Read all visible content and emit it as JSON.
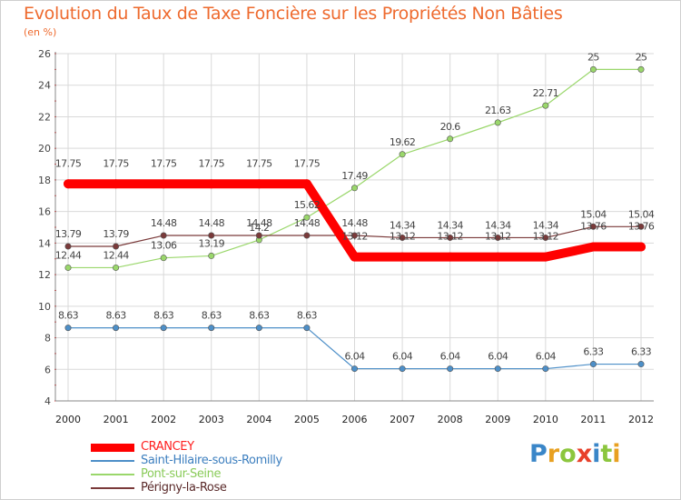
{
  "chart_data": {
    "type": "line",
    "title": "Evolution du Taux de Taxe Foncière sur les Propriétés Non Bâties",
    "ylabel": "(en %)",
    "xlabel": "",
    "categories": [
      "2000",
      "2001",
      "2002",
      "2003",
      "2004",
      "2005",
      "2006",
      "2007",
      "2008",
      "2009",
      "2010",
      "2011",
      "2012"
    ],
    "ylim": [
      4,
      26
    ],
    "yticks": [
      4,
      6,
      8,
      10,
      12,
      14,
      16,
      18,
      20,
      22,
      24,
      26
    ],
    "grid": true,
    "legend_position": "bottom-left",
    "series": [
      {
        "name": "CRANCEY",
        "color": "#ff0000",
        "values": [
          17.75,
          17.75,
          17.75,
          17.75,
          17.75,
          17.75,
          13.12,
          13.12,
          13.12,
          13.12,
          13.12,
          13.76,
          13.76
        ],
        "labels": [
          "17.75",
          "17.75",
          "17.75",
          "17.75",
          "17.75",
          "17.75",
          "13.12",
          "13.12",
          "13.12",
          "13.12",
          "13.12",
          "13.76",
          "13.76"
        ]
      },
      {
        "name": "Saint-Hilaire-sous-Romilly",
        "color": "#4d8fc8",
        "values": [
          8.63,
          8.63,
          8.63,
          8.63,
          8.63,
          8.63,
          6.04,
          6.04,
          6.04,
          6.04,
          6.04,
          6.33,
          6.33
        ],
        "labels": [
          "8.63",
          "8.63",
          "8.63",
          "8.63",
          "8.63",
          "8.63",
          "6.04",
          "6.04",
          "6.04",
          "6.04",
          "6.04",
          "6.33",
          "6.33"
        ]
      },
      {
        "name": "Pont-sur-Seine",
        "color": "#9ad76b",
        "values": [
          12.44,
          12.44,
          13.06,
          13.19,
          14.2,
          15.62,
          17.49,
          19.62,
          20.6,
          21.63,
          22.71,
          25,
          25
        ],
        "labels": [
          "12.44",
          "12.44",
          "13.06",
          "13.19",
          "14.2",
          "15.62",
          "17.49",
          "19.62",
          "20.6",
          "21.63",
          "22.71",
          "25",
          "25"
        ]
      },
      {
        "name": "Périgny-la-Rose",
        "color": "#7a3a3a",
        "values": [
          13.79,
          13.79,
          14.48,
          14.48,
          14.48,
          14.48,
          14.48,
          14.34,
          14.34,
          14.34,
          14.34,
          15.04,
          15.04
        ],
        "labels": [
          "13.79",
          "13.79",
          "14.48",
          "14.48",
          "14.48",
          "14.48",
          "14.48",
          "14.34",
          "14.34",
          "14.34",
          "14.34",
          "15.04",
          "15.04"
        ]
      }
    ]
  },
  "brand": {
    "letters": [
      {
        "ch": "P",
        "color": "#3a86c8"
      },
      {
        "ch": "r",
        "color": "#e8a020"
      },
      {
        "ch": "o",
        "color": "#8cc63e"
      },
      {
        "ch": "x",
        "color": "#e8402a"
      },
      {
        "ch": "i",
        "color": "#3a86c8"
      },
      {
        "ch": "t",
        "color": "#8cc63e"
      },
      {
        "ch": "i",
        "color": "#e8a020"
      }
    ]
  }
}
